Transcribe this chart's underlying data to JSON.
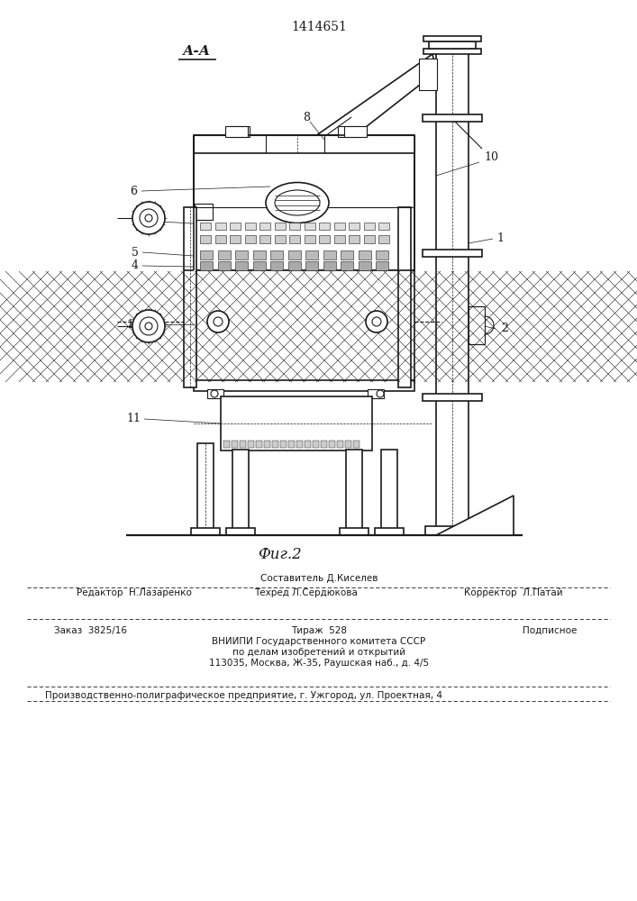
{
  "patent_number": "1414651",
  "section_label": "А-А",
  "fig_label": "Фиг.2",
  "bg_color": "#ffffff",
  "line_color": "#1a1a1a",
  "footer": {
    "line1_center": "Составитель Д.Киселев",
    "line2_left": "Редактор  Н.Лазаренко",
    "line2_center": "Техред Л.Сердюкова",
    "line2_right": "Корректор  Л.Патай",
    "line3_left": "Заказ  3825/16",
    "line3_center": "Тираж  528",
    "line3_right": "Подписное",
    "line4": "ВНИИПИ Государственного комитета СССР",
    "line5": "по делам изобретений и открытий",
    "line6": "113035, Москва, Ж-35, Раушская наб., д. 4/5",
    "line7": "Производственно-полиграфическое предприятие, г. Ужгород, ул. Проектная, 4"
  }
}
